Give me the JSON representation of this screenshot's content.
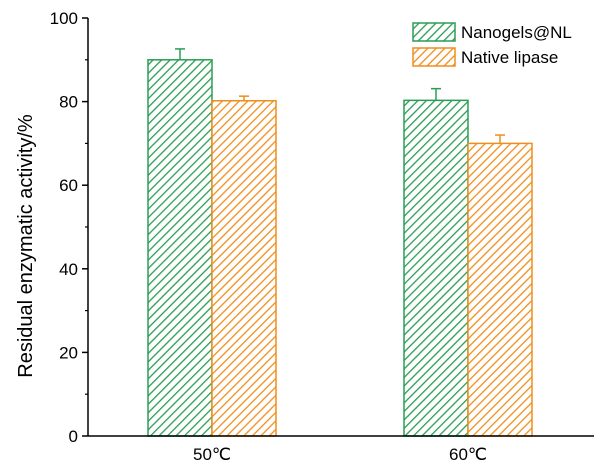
{
  "chart_data": {
    "type": "bar",
    "categories": [
      "50℃",
      "60℃"
    ],
    "series": [
      {
        "name": "Nanogels@NL",
        "values": [
          90,
          80.3
        ],
        "errors": [
          2.6,
          2.8
        ],
        "color": "#2a9d55"
      },
      {
        "name": "Native lipase",
        "values": [
          80.2,
          70
        ],
        "errors": [
          1.1,
          2.0
        ],
        "color": "#ef8e1c"
      }
    ],
    "title": "",
    "xlabel": "",
    "ylabel": "Residual enzymatic activity/%",
    "ylim": [
      0,
      100
    ],
    "yticks": [
      0,
      20,
      40,
      60,
      80,
      100
    ],
    "grid": false,
    "legend_position": "top-right",
    "bar_fill": "diagonal-hatch"
  }
}
